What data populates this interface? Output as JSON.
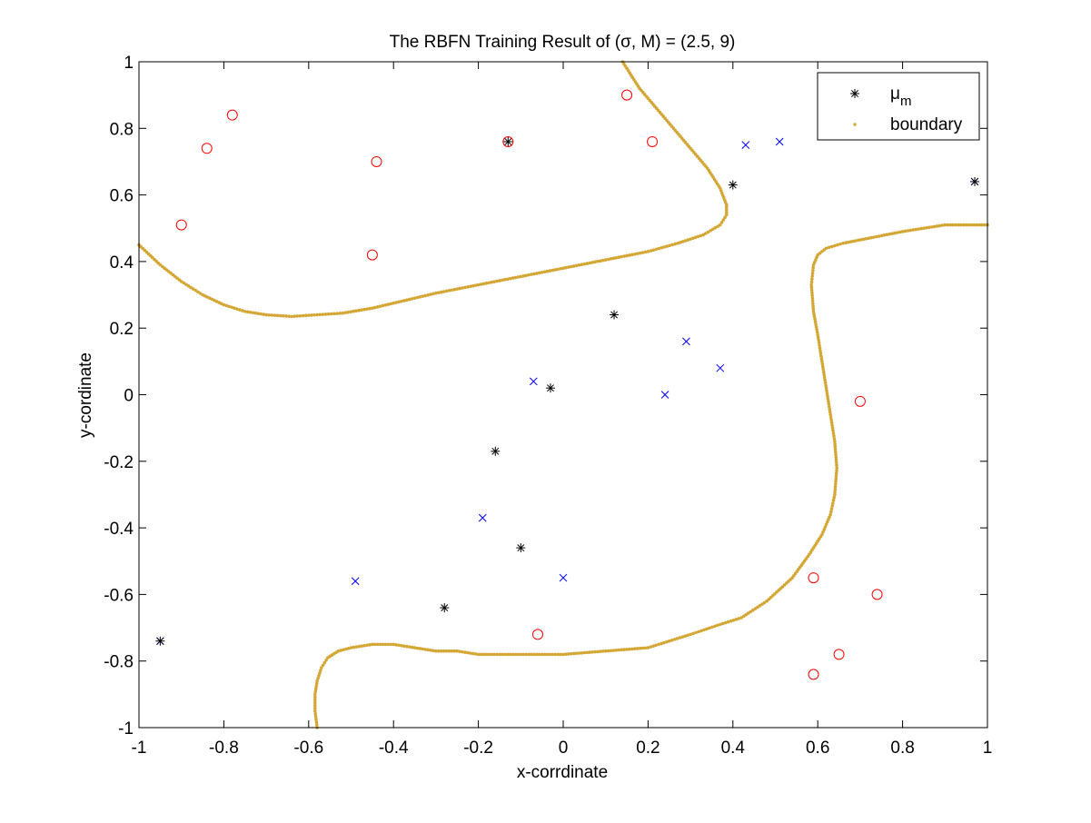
{
  "chart_data": {
    "type": "scatter",
    "title": "The RBFN Training Result of (σ, M) = (2.5, 9)",
    "xlabel": "x-corrdinate",
    "ylabel": "y-cordinate",
    "xlim": [
      -1,
      1
    ],
    "ylim": [
      -1,
      1
    ],
    "xticks": [
      -1,
      -0.8,
      -0.6,
      -0.4,
      -0.2,
      0,
      0.2,
      0.4,
      0.6,
      0.8,
      1
    ],
    "yticks": [
      -1,
      -0.8,
      -0.6,
      -0.4,
      -0.2,
      0,
      0.2,
      0.4,
      0.6,
      0.8,
      1
    ],
    "xtick_labels": [
      "-1",
      "-0.8",
      "-0.6",
      "-0.4",
      "-0.2",
      "0",
      "0.2",
      "0.4",
      "0.6",
      "0.8",
      "1"
    ],
    "ytick_labels": [
      "-1",
      "-0.8",
      "-0.6",
      "-0.4",
      "-0.2",
      "0",
      "0.2",
      "0.4",
      "0.6",
      "0.8",
      "1"
    ],
    "grid": false,
    "legend": {
      "position": "top-right",
      "entries": [
        {
          "label": "μ",
          "subscript": "m",
          "marker": "asterisk"
        },
        {
          "label": "boundary",
          "marker": "dot"
        }
      ]
    },
    "colors": {
      "class_red": "#ff0000",
      "class_blue": "#0000ff",
      "centers": "#000000",
      "boundary": "#d4a634"
    },
    "series": [
      {
        "marker": "circle",
        "color": "#ff0000",
        "points": [
          [
            -0.9,
            0.51
          ],
          [
            -0.84,
            0.74
          ],
          [
            -0.78,
            0.84
          ],
          [
            -0.44,
            0.7
          ],
          [
            -0.45,
            0.42
          ],
          [
            -0.13,
            0.76
          ],
          [
            0.15,
            0.9
          ],
          [
            0.21,
            0.76
          ],
          [
            0.7,
            -0.02
          ],
          [
            0.59,
            -0.55
          ],
          [
            0.74,
            -0.6
          ],
          [
            0.65,
            -0.78
          ],
          [
            0.59,
            -0.84
          ],
          [
            -0.06,
            -0.72
          ]
        ]
      },
      {
        "marker": "x",
        "color": "#0000ff",
        "points": [
          [
            0.43,
            0.75
          ],
          [
            0.51,
            0.76
          ],
          [
            0.97,
            0.64
          ],
          [
            0.29,
            0.16
          ],
          [
            0.37,
            0.08
          ],
          [
            -0.07,
            0.04
          ],
          [
            0.24,
            0.0
          ],
          [
            -0.19,
            -0.37
          ],
          [
            0.0,
            -0.55
          ],
          [
            -0.49,
            -0.56
          ],
          [
            -0.95,
            -0.74
          ]
        ]
      },
      {
        "name": "μm",
        "marker": "asterisk",
        "color": "#000000",
        "points": [
          [
            -0.13,
            0.76
          ],
          [
            0.4,
            0.63
          ],
          [
            0.97,
            0.64
          ],
          [
            0.12,
            0.24
          ],
          [
            -0.03,
            0.02
          ],
          [
            -0.16,
            -0.17
          ],
          [
            -0.1,
            -0.46
          ],
          [
            -0.28,
            -0.64
          ],
          [
            -0.95,
            -0.74
          ]
        ]
      },
      {
        "name": "boundary",
        "marker": "dot",
        "color": "#d4a634",
        "curves": [
          [
            [
              -1.0,
              0.45
            ],
            [
              -0.95,
              0.39
            ],
            [
              -0.9,
              0.34
            ],
            [
              -0.85,
              0.3
            ],
            [
              -0.8,
              0.27
            ],
            [
              -0.75,
              0.25
            ],
            [
              -0.7,
              0.24
            ],
            [
              -0.64,
              0.235
            ],
            [
              -0.58,
              0.24
            ],
            [
              -0.52,
              0.245
            ],
            [
              -0.45,
              0.26
            ],
            [
              -0.4,
              0.275
            ],
            [
              -0.35,
              0.29
            ],
            [
              -0.3,
              0.305
            ],
            [
              -0.2,
              0.33
            ],
            [
              -0.1,
              0.355
            ],
            [
              0.0,
              0.38
            ],
            [
              0.1,
              0.405
            ],
            [
              0.2,
              0.43
            ],
            [
              0.27,
              0.455
            ],
            [
              0.33,
              0.48
            ],
            [
              0.37,
              0.51
            ],
            [
              0.385,
              0.54
            ],
            [
              0.385,
              0.57
            ],
            [
              0.37,
              0.62
            ],
            [
              0.34,
              0.68
            ],
            [
              0.3,
              0.74
            ],
            [
              0.26,
              0.8
            ],
            [
              0.22,
              0.86
            ],
            [
              0.18,
              0.92
            ],
            [
              0.15,
              0.98
            ],
            [
              0.14,
              1.0
            ]
          ],
          [
            [
              1.0,
              0.51
            ],
            [
              0.9,
              0.51
            ],
            [
              0.8,
              0.49
            ],
            [
              0.72,
              0.47
            ],
            [
              0.66,
              0.455
            ],
            [
              0.62,
              0.44
            ],
            [
              0.6,
              0.42
            ],
            [
              0.59,
              0.39
            ],
            [
              0.585,
              0.33
            ],
            [
              0.59,
              0.25
            ],
            [
              0.6,
              0.18
            ],
            [
              0.61,
              0.1
            ],
            [
              0.62,
              0.02
            ],
            [
              0.63,
              -0.06
            ],
            [
              0.64,
              -0.14
            ],
            [
              0.645,
              -0.22
            ],
            [
              0.64,
              -0.3
            ],
            [
              0.63,
              -0.36
            ],
            [
              0.61,
              -0.42
            ],
            [
              0.58,
              -0.48
            ],
            [
              0.54,
              -0.55
            ],
            [
              0.48,
              -0.62
            ],
            [
              0.42,
              -0.67
            ],
            [
              0.37,
              -0.69
            ],
            [
              0.3,
              -0.72
            ],
            [
              0.2,
              -0.76
            ],
            [
              0.1,
              -0.77
            ],
            [
              0.0,
              -0.78
            ],
            [
              -0.1,
              -0.78
            ],
            [
              -0.2,
              -0.78
            ],
            [
              -0.25,
              -0.77
            ],
            [
              -0.3,
              -0.77
            ],
            [
              -0.35,
              -0.76
            ],
            [
              -0.4,
              -0.75
            ],
            [
              -0.45,
              -0.75
            ],
            [
              -0.5,
              -0.76
            ],
            [
              -0.53,
              -0.77
            ],
            [
              -0.555,
              -0.79
            ],
            [
              -0.57,
              -0.82
            ],
            [
              -0.58,
              -0.86
            ],
            [
              -0.585,
              -0.9
            ],
            [
              -0.585,
              -0.95
            ],
            [
              -0.58,
              -1.0
            ]
          ]
        ]
      }
    ]
  }
}
